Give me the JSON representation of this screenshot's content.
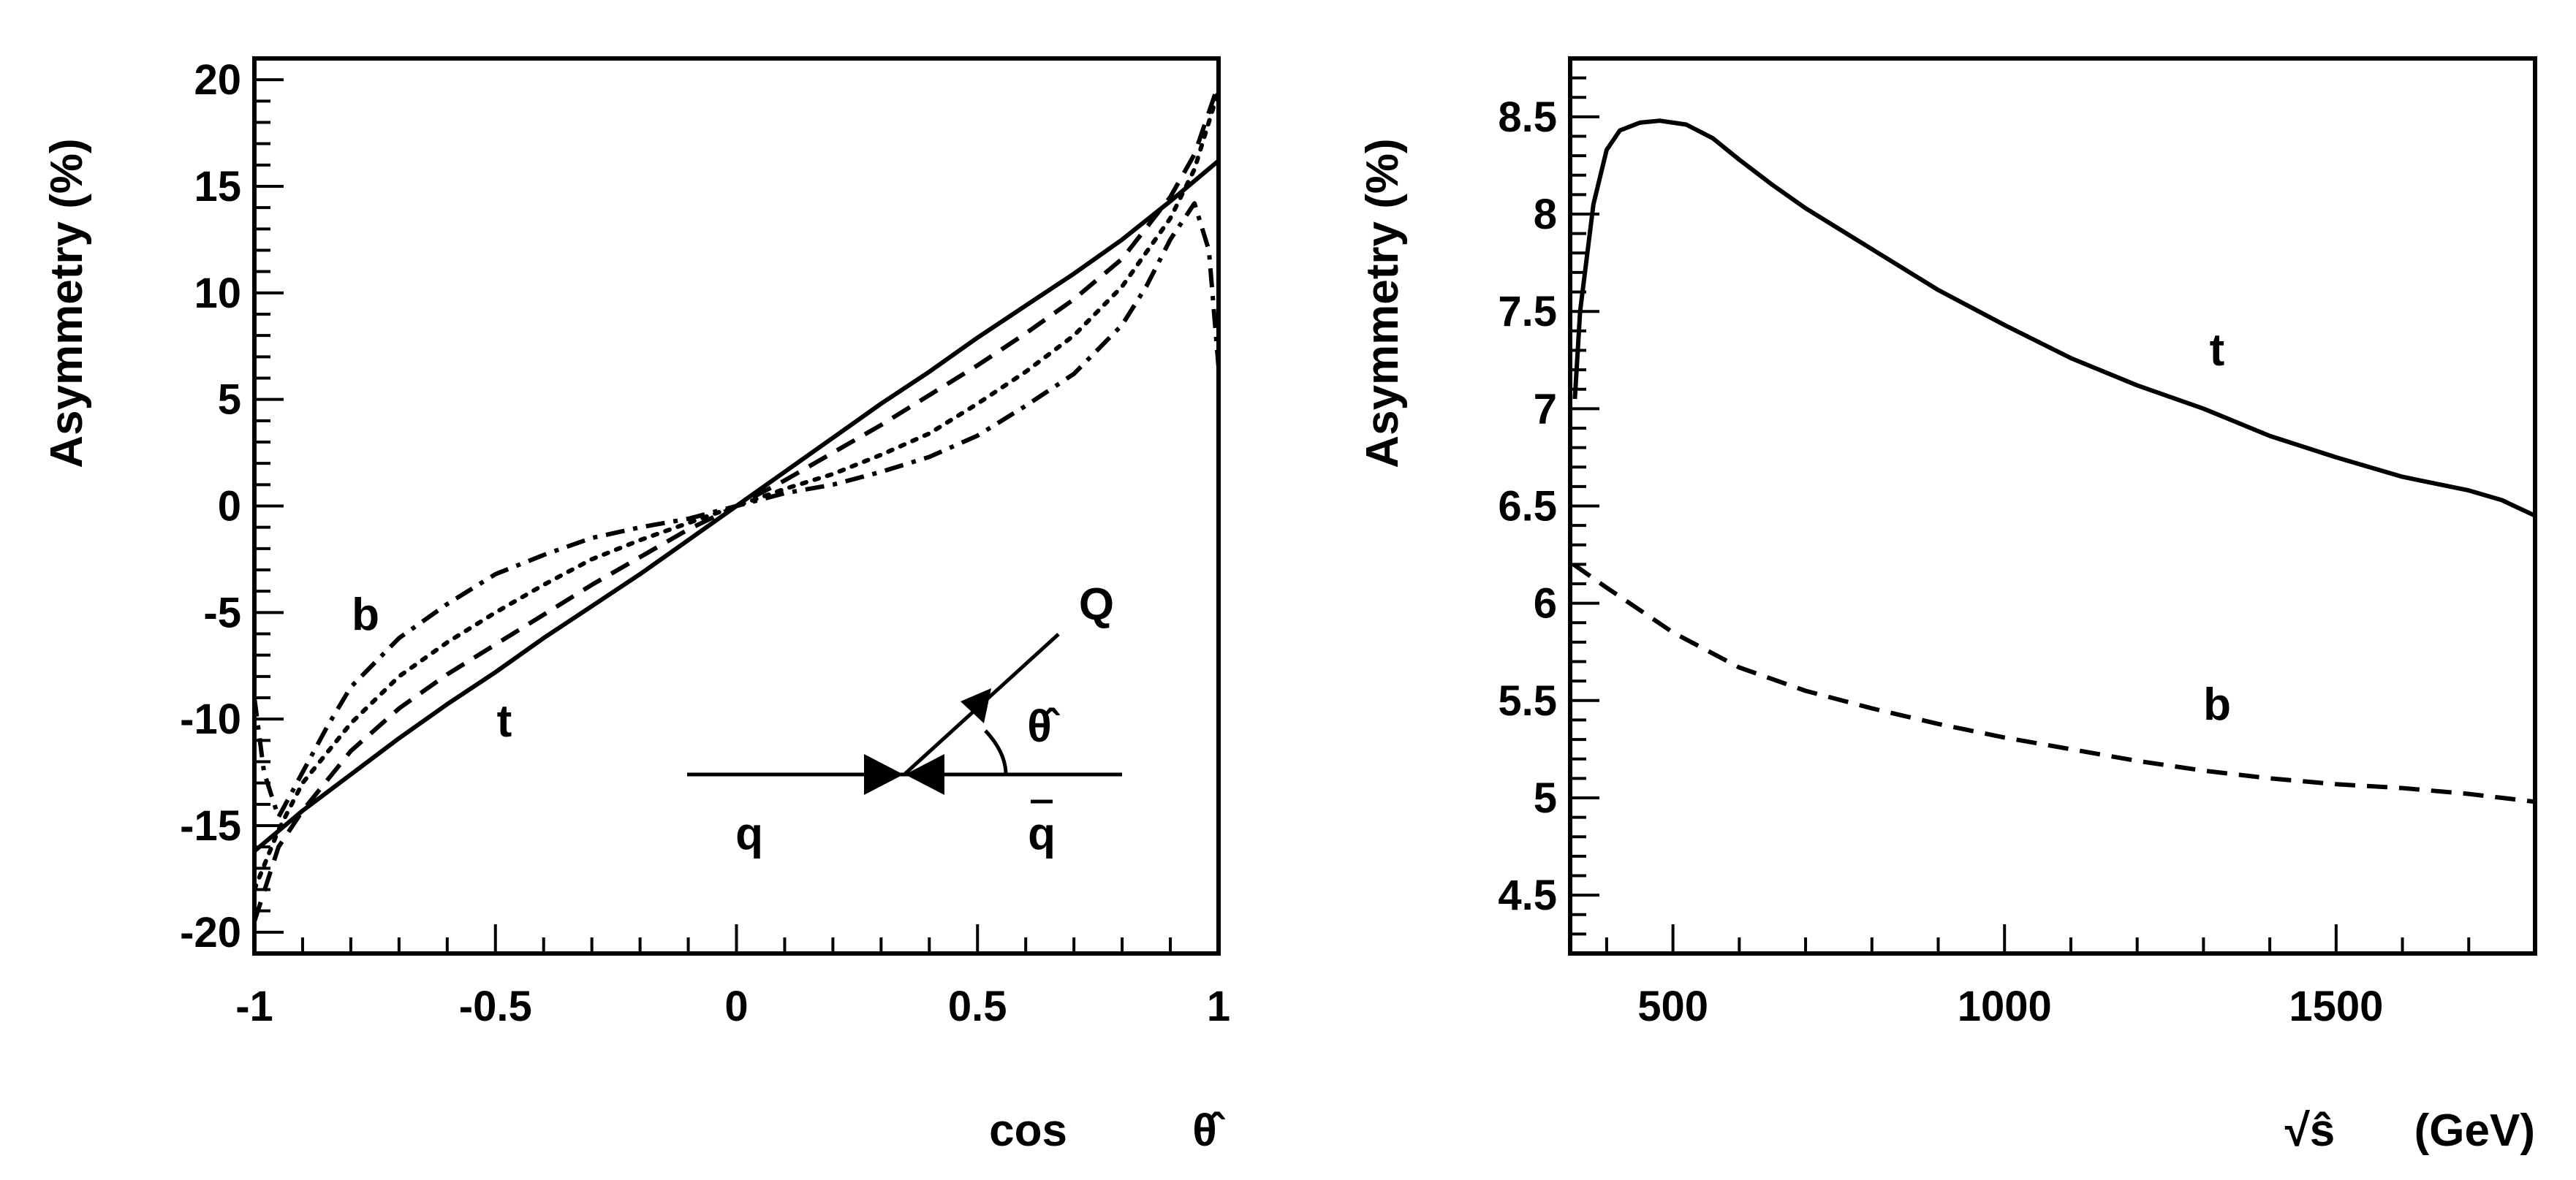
{
  "figure": {
    "background": "#ffffff",
    "line_color": "#000000"
  },
  "chart_data": [
    {
      "type": "line",
      "title": "",
      "xlabel": "cos θ̂",
      "xlabel_text": "cos",
      "xlabel_symbol": "θ̂",
      "ylabel": "Asymmetry (%)",
      "xlim": [
        -1,
        1
      ],
      "ylim": [
        -21,
        21
      ],
      "xticks": [
        -1,
        -0.5,
        0,
        0.5,
        1
      ],
      "xtick_labels": [
        "-1",
        "-0.5",
        "0",
        "0.5",
        "1"
      ],
      "yticks": [
        -20,
        -15,
        -10,
        -5,
        0,
        5,
        10,
        15,
        20
      ],
      "ytick_labels": [
        "-20",
        "-15",
        "-10",
        "-5",
        "0",
        "5",
        "10",
        "15",
        "20"
      ],
      "grid": false,
      "series": [
        {
          "name": "t",
          "style": "solid",
          "x": [
            -1,
            -0.9,
            -0.8,
            -0.7,
            -0.6,
            -0.5,
            -0.4,
            -0.3,
            -0.2,
            -0.1,
            0,
            0.1,
            0.2,
            0.3,
            0.4,
            0.5,
            0.6,
            0.7,
            0.8,
            0.9,
            1
          ],
          "values": [
            -16.2,
            -14.3,
            -12.6,
            -10.9,
            -9.3,
            -7.8,
            -6.2,
            -4.7,
            -3.2,
            -1.6,
            0,
            1.6,
            3.2,
            4.8,
            6.3,
            7.9,
            9.4,
            10.9,
            12.5,
            14.3,
            16.2
          ]
        },
        {
          "name": "dashed",
          "style": "dashed",
          "x": [
            -1,
            -0.95,
            -0.9,
            -0.8,
            -0.7,
            -0.6,
            -0.5,
            -0.4,
            -0.3,
            -0.2,
            -0.1,
            0,
            0.1,
            0.2,
            0.3,
            0.4,
            0.5,
            0.6,
            0.7,
            0.8,
            0.9,
            0.95,
            1
          ],
          "values": [
            -19.5,
            -16.0,
            -14.3,
            -11.5,
            -9.5,
            -7.9,
            -6.5,
            -5.1,
            -3.7,
            -2.4,
            -1.1,
            0,
            1.2,
            2.5,
            3.8,
            5.2,
            6.6,
            8.1,
            9.7,
            11.6,
            14.5,
            16.5,
            19.8
          ]
        },
        {
          "name": "dotted",
          "style": "dotted",
          "x": [
            -1,
            -0.95,
            -0.9,
            -0.8,
            -0.7,
            -0.6,
            -0.5,
            -0.4,
            -0.3,
            -0.2,
            -0.1,
            0,
            0.1,
            0.2,
            0.3,
            0.4,
            0.5,
            0.6,
            0.7,
            0.8,
            0.9,
            0.95,
            1
          ],
          "values": [
            -18.0,
            -15.2,
            -13.0,
            -10.2,
            -8.0,
            -6.4,
            -5.0,
            -3.7,
            -2.5,
            -1.6,
            -0.8,
            0,
            0.8,
            1.5,
            2.4,
            3.4,
            4.8,
            6.3,
            8.0,
            10.3,
            13.5,
            15.8,
            19.5
          ]
        },
        {
          "name": "b",
          "style": "dashdot",
          "x": [
            -1,
            -0.98,
            -0.95,
            -0.9,
            -0.85,
            -0.8,
            -0.7,
            -0.6,
            -0.5,
            -0.4,
            -0.3,
            -0.2,
            -0.1,
            0,
            0.1,
            0.2,
            0.3,
            0.4,
            0.5,
            0.6,
            0.7,
            0.8,
            0.85,
            0.9,
            0.95,
            0.98,
            1
          ],
          "values": [
            -9.0,
            -12.5,
            -14.6,
            -12.5,
            -10.4,
            -8.5,
            -6.2,
            -4.6,
            -3.2,
            -2.3,
            -1.5,
            -1.0,
            -0.6,
            0,
            0.6,
            1.0,
            1.6,
            2.3,
            3.3,
            4.7,
            6.2,
            8.5,
            10.3,
            12.5,
            14.2,
            12.0,
            6.5
          ]
        }
      ],
      "annotations": {
        "label_b": "b",
        "label_t": "t",
        "inset": {
          "q": "q",
          "qbar": "q",
          "Q": "Q",
          "theta": "θ̂"
        }
      }
    },
    {
      "type": "line",
      "title": "",
      "xlabel": "√ŝ (GeV)",
      "xlabel_text": "(GeV)",
      "xlabel_symbol": "√ŝ",
      "ylabel": "Asymmetry (%)",
      "xlim": [
        345,
        1800
      ],
      "ylim": [
        4.2,
        8.8
      ],
      "xticks": [
        500,
        1000,
        1500
      ],
      "xtick_labels": [
        "500",
        "1000",
        "1500"
      ],
      "yticks": [
        4.5,
        5,
        5.5,
        6,
        6.5,
        7,
        7.5,
        8,
        8.5
      ],
      "ytick_labels": [
        "4.5",
        "5",
        "5.5",
        "6",
        "6.5",
        "7",
        "7.5",
        "8",
        "8.5"
      ],
      "grid": false,
      "series": [
        {
          "name": "t",
          "style": "solid",
          "x": [
            352,
            360,
            380,
            400,
            420,
            450,
            480,
            520,
            560,
            600,
            650,
            700,
            800,
            900,
            1000,
            1100,
            1200,
            1300,
            1400,
            1500,
            1600,
            1700,
            1750,
            1800
          ],
          "values": [
            7.05,
            7.5,
            8.05,
            8.33,
            8.43,
            8.47,
            8.48,
            8.46,
            8.39,
            8.28,
            8.15,
            8.03,
            7.82,
            7.61,
            7.43,
            7.26,
            7.12,
            7.0,
            6.86,
            6.75,
            6.65,
            6.58,
            6.53,
            6.45
          ]
        },
        {
          "name": "b",
          "style": "dashed",
          "x": [
            350,
            400,
            500,
            600,
            700,
            800,
            900,
            1000,
            1100,
            1200,
            1300,
            1400,
            1500,
            1600,
            1700,
            1800
          ],
          "values": [
            6.2,
            6.08,
            5.85,
            5.67,
            5.55,
            5.46,
            5.38,
            5.31,
            5.25,
            5.19,
            5.14,
            5.1,
            5.07,
            5.05,
            5.02,
            4.98
          ]
        }
      ],
      "annotations": {
        "label_t": "t",
        "label_b": "b"
      }
    }
  ]
}
